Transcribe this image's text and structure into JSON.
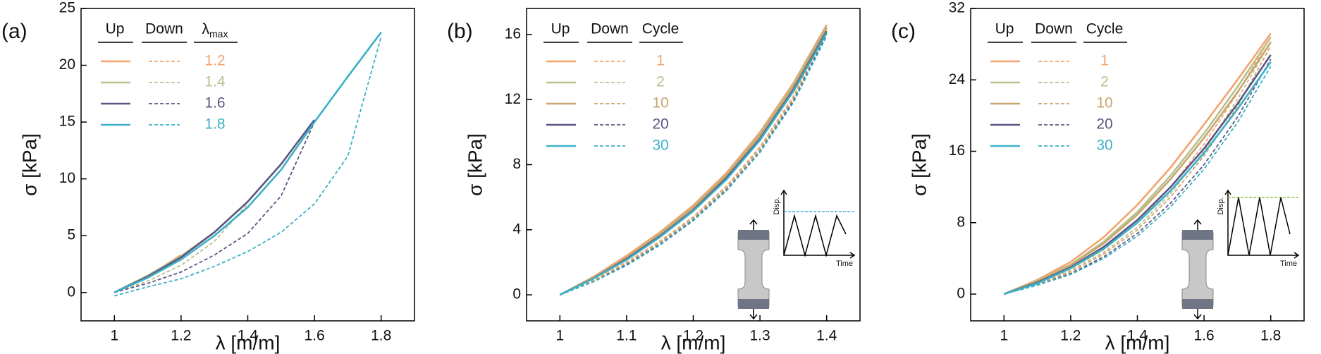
{
  "chart_data": [
    {
      "type": "line",
      "panel_label": "(a)",
      "x_label": "λ [m/m]",
      "y_label": "σ [kPa]",
      "xlim": [
        0.9,
        1.9
      ],
      "xticks": [
        1.0,
        1.2,
        1.4,
        1.6,
        1.8
      ],
      "ylim": [
        -2.5,
        25
      ],
      "yticks": [
        0,
        5,
        10,
        15,
        20,
        25
      ],
      "legend_headers": [
        "Up",
        "Down",
        "λmax"
      ],
      "x": [
        1.0,
        1.1,
        1.2,
        1.3,
        1.4,
        1.5,
        1.6,
        1.7,
        1.8
      ],
      "series": [
        {
          "name": "1.2",
          "color": "#f4a26c",
          "up": [
            0,
            1.4,
            3.3,
            null,
            null,
            null,
            null,
            null,
            null
          ],
          "down": [
            0,
            1.3,
            3.2,
            null,
            null,
            null,
            null,
            null,
            null
          ]
        },
        {
          "name": "1.4",
          "color": "#b8c08e",
          "up": [
            0,
            1.5,
            3.2,
            5.3,
            8.0,
            null,
            null,
            null,
            null
          ],
          "down": [
            0,
            1.0,
            2.4,
            4.5,
            7.8,
            null,
            null,
            null,
            null
          ]
        },
        {
          "name": "1.6",
          "color": "#5b5582",
          "up": [
            0,
            1.4,
            3.1,
            5.3,
            8.0,
            11.3,
            15.2,
            null,
            null
          ],
          "down": [
            0,
            0.8,
            1.8,
            3.3,
            5.2,
            8.5,
            15.0,
            null,
            null
          ]
        },
        {
          "name": "1.8",
          "color": "#3bb0c6",
          "up": [
            0,
            1.3,
            2.9,
            5.0,
            7.5,
            10.8,
            15.0,
            19.0,
            22.9
          ],
          "down": [
            -0.3,
            0.5,
            1.2,
            2.3,
            3.6,
            5.3,
            7.8,
            12.0,
            22.5
          ]
        }
      ]
    },
    {
      "type": "line",
      "panel_label": "(b)",
      "x_label": "λ [m/m]",
      "y_label": "σ [kPa]",
      "xlim": [
        0.95,
        1.45
      ],
      "xticks": [
        1.0,
        1.1,
        1.2,
        1.3,
        1.4
      ],
      "ylim": [
        -1.6,
        17.6
      ],
      "yticks": [
        0,
        4,
        8,
        12,
        16
      ],
      "legend_headers": [
        "Up",
        "Down",
        "Cycle"
      ],
      "inset": {
        "y_label": "Disp.",
        "x_label": "Time",
        "line_color": "#3bb0e0"
      },
      "x": [
        1.0,
        1.05,
        1.1,
        1.15,
        1.2,
        1.25,
        1.3,
        1.35,
        1.4
      ],
      "series": [
        {
          "name": "1",
          "color": "#f4a26c",
          "up": [
            0,
            1.1,
            2.4,
            3.85,
            5.5,
            7.5,
            10.0,
            13.0,
            16.6
          ],
          "down": [
            0,
            0.9,
            2.0,
            3.3,
            4.8,
            6.7,
            9.1,
            12.2,
            16.4
          ]
        },
        {
          "name": "2",
          "color": "#b8c08e",
          "up": [
            0,
            1.05,
            2.3,
            3.75,
            5.4,
            7.4,
            9.9,
            12.9,
            16.5
          ],
          "down": [
            0,
            0.85,
            1.95,
            3.25,
            4.75,
            6.6,
            9.0,
            12.1,
            16.3
          ]
        },
        {
          "name": "10",
          "color": "#c8a56c",
          "up": [
            0,
            1.05,
            2.3,
            3.7,
            5.35,
            7.35,
            9.8,
            12.8,
            16.4
          ],
          "down": [
            0,
            0.85,
            1.9,
            3.2,
            4.7,
            6.55,
            8.95,
            12.0,
            16.2
          ]
        },
        {
          "name": "20",
          "color": "#5b5582",
          "up": [
            0,
            1.0,
            2.2,
            3.6,
            5.2,
            7.2,
            9.6,
            12.6,
            16.2
          ],
          "down": [
            0,
            0.8,
            1.85,
            3.1,
            4.6,
            6.45,
            8.8,
            11.9,
            16.0
          ]
        },
        {
          "name": "30",
          "color": "#3bb0c6",
          "up": [
            0,
            1.0,
            2.15,
            3.55,
            5.15,
            7.1,
            9.5,
            12.5,
            16.1
          ],
          "down": [
            0,
            0.8,
            1.8,
            3.05,
            4.55,
            6.4,
            8.75,
            11.8,
            15.9
          ]
        }
      ]
    },
    {
      "type": "line",
      "panel_label": "(c)",
      "x_label": "λ [m/m]",
      "y_label": "σ [kPa]",
      "xlim": [
        0.9,
        1.9
      ],
      "xticks": [
        1.0,
        1.2,
        1.4,
        1.6,
        1.8
      ],
      "ylim": [
        -3,
        32
      ],
      "yticks": [
        0,
        8,
        16,
        24,
        32
      ],
      "legend_headers": [
        "Up",
        "Down",
        "Cycle"
      ],
      "inset": {
        "y_label": "Disp.",
        "x_label": "Time",
        "line_color": "#8cc63f"
      },
      "x": [
        1.0,
        1.1,
        1.2,
        1.3,
        1.4,
        1.5,
        1.6,
        1.7,
        1.8
      ],
      "series": [
        {
          "name": "1",
          "color": "#f4a26c",
          "up": [
            0,
            1.6,
            3.6,
            6.4,
            10.0,
            14.2,
            19.0,
            24.0,
            29.2
          ],
          "down": [
            0,
            1.2,
            2.8,
            5.0,
            8.0,
            12.0,
            16.8,
            22.5,
            28.8
          ]
        },
        {
          "name": "2",
          "color": "#b8c08e",
          "up": [
            0,
            1.5,
            3.3,
            5.9,
            9.2,
            13.3,
            18.0,
            23.2,
            28.8
          ],
          "down": [
            0,
            1.1,
            2.6,
            4.7,
            7.5,
            11.3,
            16.0,
            21.8,
            28.3
          ]
        },
        {
          "name": "10",
          "color": "#c8a56c",
          "up": [
            0,
            1.4,
            3.2,
            5.7,
            8.9,
            12.9,
            17.5,
            22.6,
            28.2
          ],
          "down": [
            0,
            1.1,
            2.5,
            4.5,
            7.2,
            10.9,
            15.5,
            21.0,
            27.8
          ]
        },
        {
          "name": "20",
          "color": "#5b5582",
          "up": [
            0,
            1.3,
            3.0,
            5.3,
            8.3,
            12.0,
            16.3,
            21.3,
            26.8
          ],
          "down": [
            0,
            1.0,
            2.3,
            4.2,
            6.8,
            10.2,
            14.5,
            19.8,
            26.3
          ]
        },
        {
          "name": "30",
          "color": "#3bb0c6",
          "up": [
            0,
            1.2,
            2.9,
            5.1,
            8.0,
            11.6,
            15.8,
            20.7,
            26.0
          ],
          "down": [
            0,
            1.0,
            2.2,
            4.0,
            6.5,
            9.8,
            14.0,
            19.2,
            25.5
          ]
        }
      ]
    }
  ]
}
